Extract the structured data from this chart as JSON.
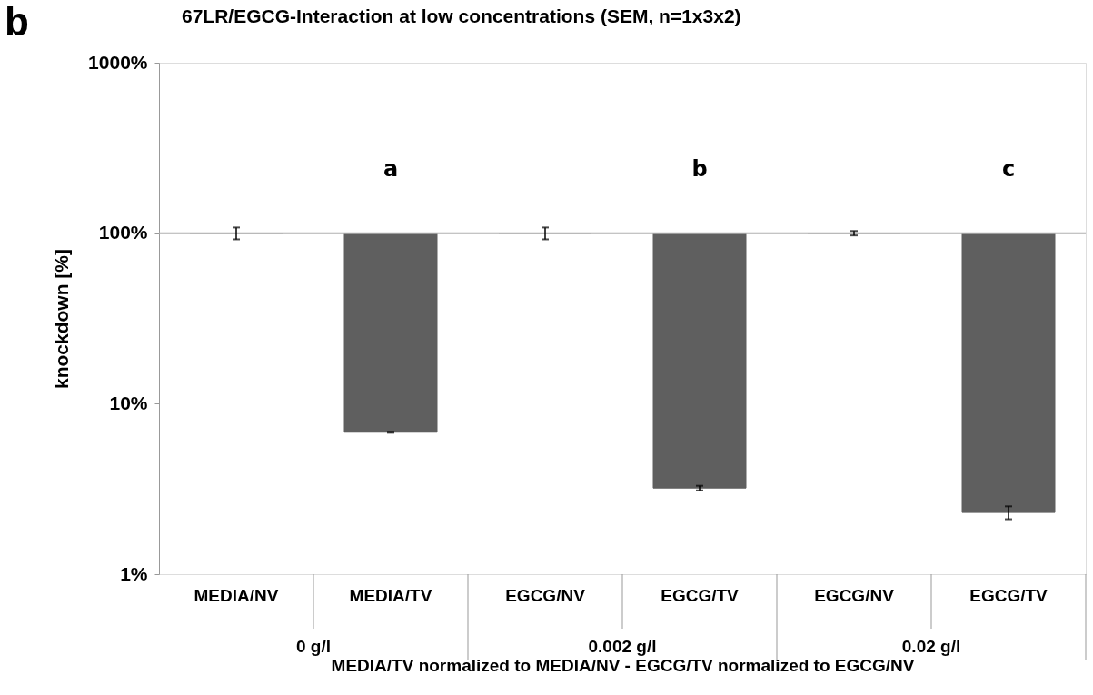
{
  "chart_data": {
    "type": "bar",
    "title": "67LR/EGCG-Interaction at low concentrations (SEM, n=1x3x2)",
    "ylabel": "knockdown [%]",
    "xlabel": "MEDIA/TV normalized to MEDIA/NV - EGCG/TV normalized to EGCG/NV",
    "categories": [
      "MEDIA/NV",
      "MEDIA/TV",
      "EGCG/NV",
      "EGCG/TV",
      "EGCG/NV",
      "EGCG/TV"
    ],
    "base": [
      100,
      100,
      100,
      100,
      100,
      100
    ],
    "values": [
      0,
      -93.2,
      0,
      -96.8,
      0,
      -97.7
    ],
    "errors": [
      8,
      0.05,
      8,
      0.1,
      3,
      0.2
    ],
    "color": "#5f5f5f",
    "log": true,
    "ylim": [
      1,
      1000
    ],
    "yticks": [
      {
        "value": 1,
        "label": "1%"
      },
      {
        "value": 10,
        "label": "10%"
      },
      {
        "value": 100,
        "label": "100%"
      },
      {
        "value": 1000,
        "label": "1000%"
      }
    ],
    "ref_lines": [
      {
        "axis": "y",
        "value": 100,
        "color": "#b0b0b0"
      }
    ],
    "grid": false,
    "annotations": [
      "b",
      "a",
      "b",
      "c",
      "0 g/l",
      "0.002 g/l",
      "0.02 g/l"
    ]
  }
}
